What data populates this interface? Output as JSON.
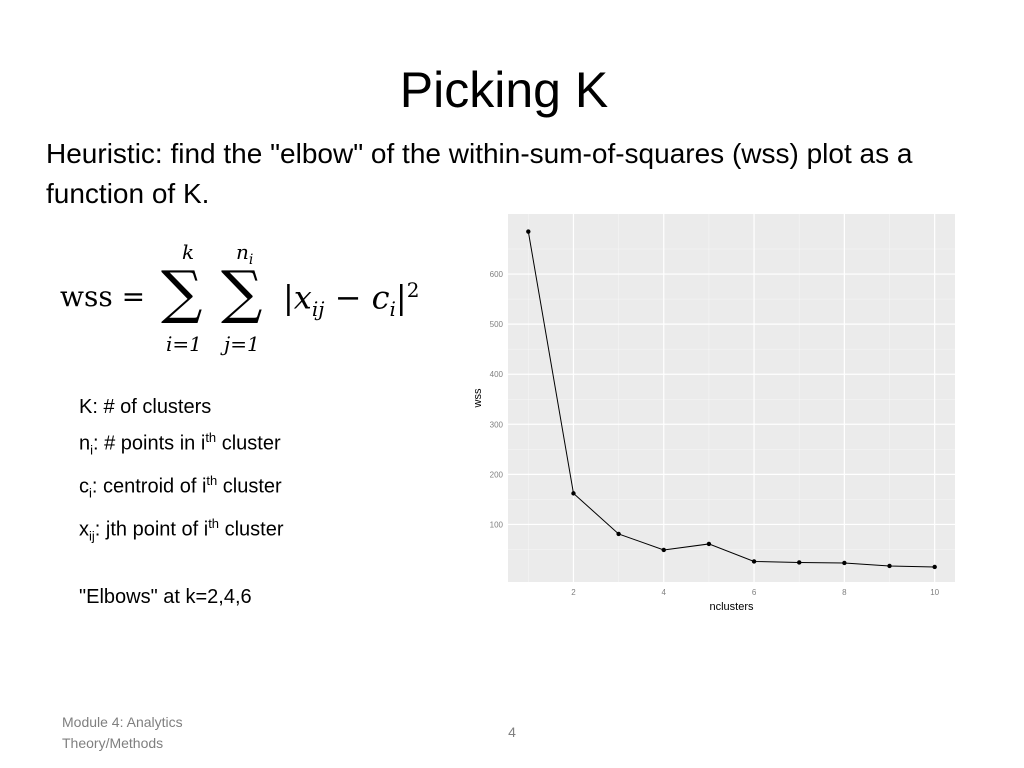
{
  "slide": {
    "title": "Picking K",
    "subtitle": "Heuristic: find the \"elbow\" of the within-sum-of-squares (wss) plot as a function of K."
  },
  "formula": {
    "lhs": "wss =",
    "sum1_top": "k",
    "sum1_bottom": "i=1",
    "sum2_top": "n",
    "sum2_top_sub": "i",
    "sum2_bottom": "j=1",
    "body_open": "|x",
    "body_sub1": "ij",
    "body_mid": " − c",
    "body_sub2": "i",
    "body_close": "|",
    "body_exp": "2"
  },
  "definitions": [
    {
      "main": "K: # of clusters"
    },
    {
      "pre": "n",
      "sub": "i",
      "mid": ": # points in i",
      "sup": "th",
      "post": " cluster"
    },
    {
      "pre": "c",
      "sub": "i",
      "mid": ": centroid of i",
      "sup": "th",
      "post": " cluster"
    },
    {
      "pre": "x",
      "sub": "ij",
      "mid": ": jth point of i",
      "sup": "th",
      "post": " cluster"
    }
  ],
  "elbows_note": "\"Elbows\" at k=2,4,6",
  "footer": {
    "module": "Module 4: Analytics Theory/Methods",
    "page_number": "4"
  },
  "chart_data": {
    "type": "line",
    "x": [
      1,
      2,
      3,
      4,
      5,
      6,
      7,
      8,
      9,
      10
    ],
    "y": [
      685,
      162,
      81,
      49,
      61,
      26,
      24,
      23,
      17,
      15
    ],
    "xlabel": "nclusters",
    "ylabel": "wss",
    "xticks": [
      2,
      4,
      6,
      8,
      10
    ],
    "yticks": [
      100,
      200,
      300,
      400,
      500,
      600
    ],
    "xlim": [
      0.55,
      10.45
    ],
    "ylim": [
      -15,
      720
    ],
    "grid": true,
    "colors": {
      "panel": "#ebebeb",
      "grid": "#ffffff",
      "line": "#000000",
      "tick_text": "#7f7f7f"
    }
  }
}
